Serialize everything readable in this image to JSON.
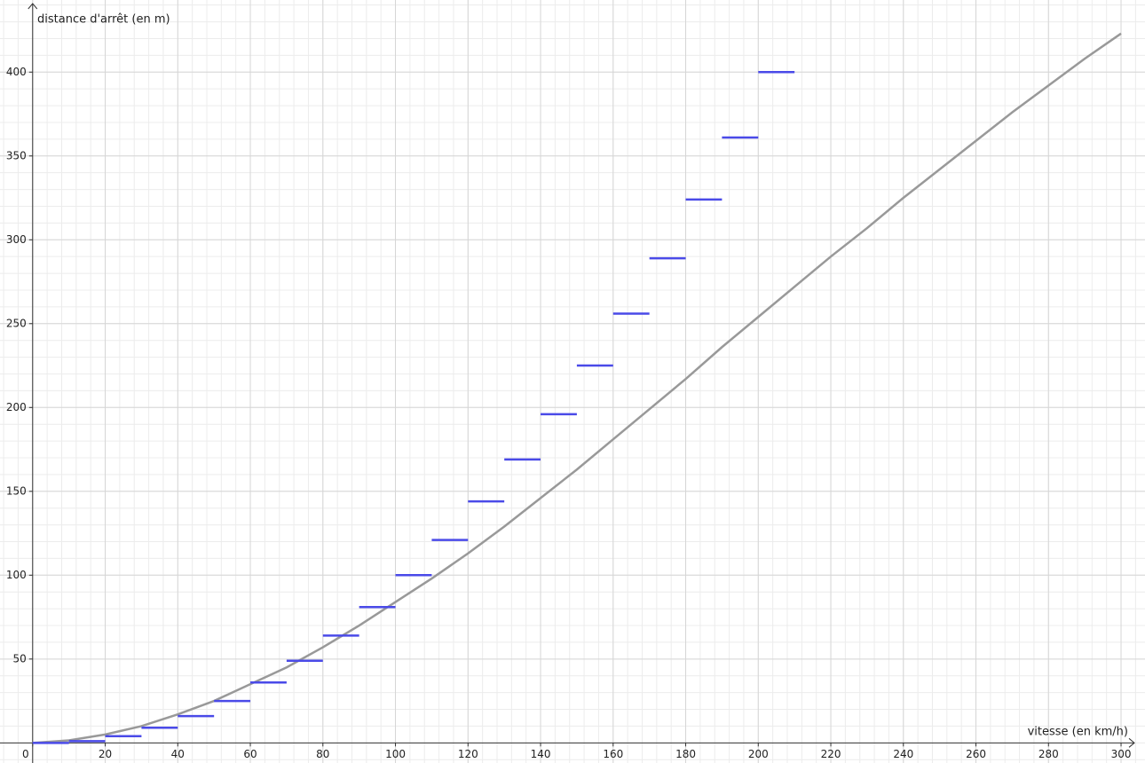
{
  "chart_data": {
    "type": "line",
    "x_label": "vitesse (en km/h)",
    "y_label": "distance d'arrêt (en m)",
    "xlim": [
      -9,
      306.6
    ],
    "ylim": [
      -12,
      443
    ],
    "xticks": [
      0,
      20,
      40,
      60,
      80,
      100,
      120,
      140,
      160,
      180,
      200,
      220,
      240,
      260,
      280,
      300
    ],
    "yticks": [
      50,
      100,
      150,
      200,
      250,
      300,
      350,
      400
    ],
    "grid": true,
    "minor_divisions": 5,
    "curve": {
      "color": "#999999",
      "x": [
        0,
        10,
        20,
        30,
        40,
        50,
        60,
        70,
        80,
        90,
        100,
        110,
        120,
        130,
        140,
        150,
        160,
        170,
        180,
        190,
        200,
        210,
        220,
        230,
        240,
        250,
        260,
        270,
        280,
        290,
        300
      ],
      "values": [
        0,
        1.5,
        5,
        10,
        17,
        25,
        35,
        45,
        57,
        70,
        84,
        98,
        113,
        129,
        146,
        163,
        181,
        199,
        217,
        236,
        254,
        272,
        290,
        307,
        325,
        342,
        359,
        376,
        392,
        408,
        423
      ]
    },
    "steps": {
      "color": "#4a4ae8",
      "x_start": [
        0,
        10,
        20,
        30,
        40,
        50,
        60,
        70,
        80,
        90,
        100,
        110,
        120,
        130,
        140,
        150,
        160,
        170,
        180,
        190,
        200
      ],
      "x_end": [
        10,
        20,
        30,
        40,
        50,
        60,
        70,
        80,
        90,
        100,
        110,
        120,
        130,
        140,
        150,
        160,
        170,
        180,
        190,
        200,
        210
      ],
      "values": [
        0,
        1,
        4,
        9,
        16,
        25,
        36,
        49,
        64,
        81,
        100,
        121,
        144,
        169,
        196,
        225,
        256,
        289,
        324,
        361,
        400
      ]
    }
  }
}
